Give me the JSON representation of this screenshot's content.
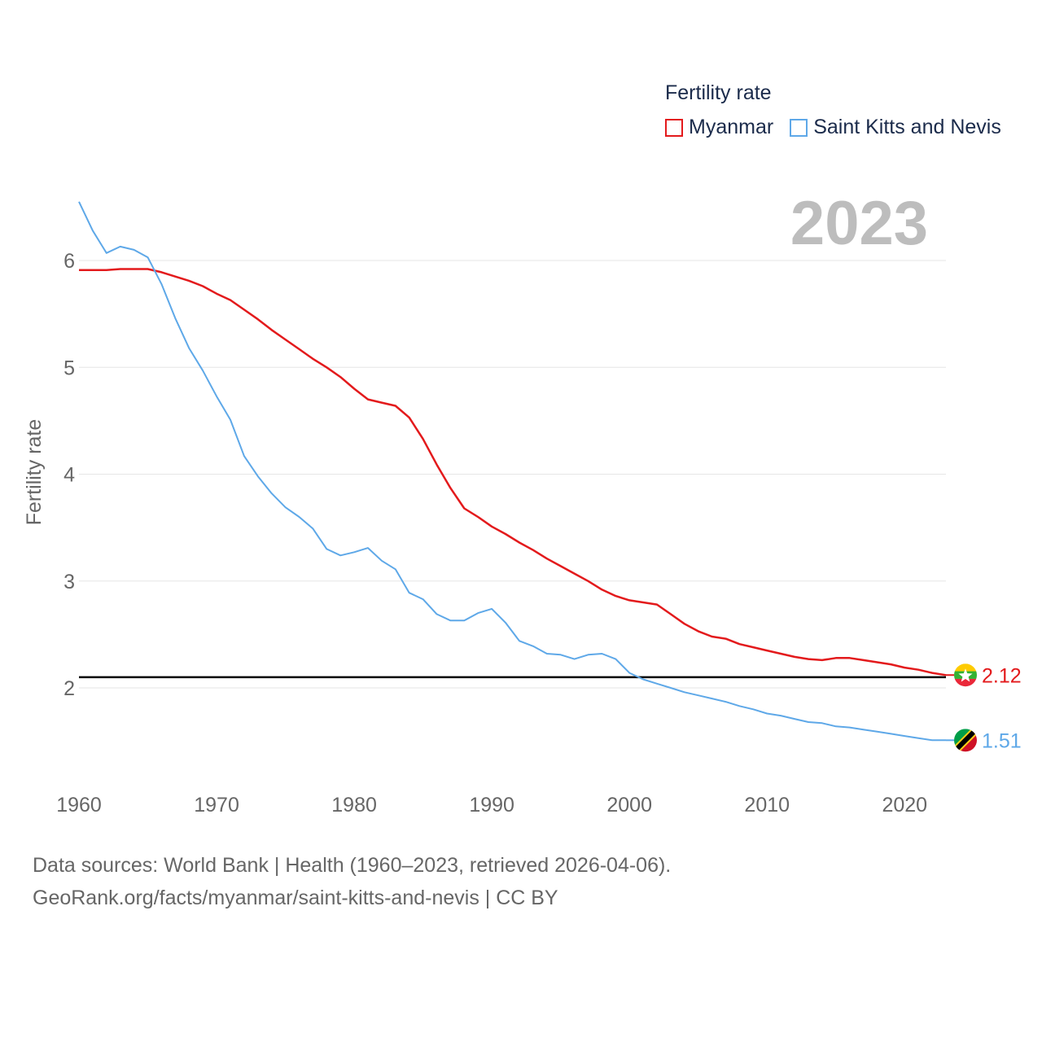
{
  "legend": {
    "title": "Fertility rate"
  },
  "footer": {
    "line1": "Data sources: World Bank | Health (1960–2023, retrieved 2026-04-06).",
    "line2": "GeoRank.org/facts/myanmar/saint-kitts-and-nevis | CC BY"
  },
  "chart_data": {
    "type": "line",
    "title": "Fertility rate",
    "year_label": "2023",
    "xlabel": "",
    "ylabel": "Fertility rate",
    "xlim": [
      1960,
      2023
    ],
    "ylim": [
      1.2,
      6.6
    ],
    "x_ticks": [
      1960,
      1970,
      1980,
      1990,
      2000,
      2010,
      2020
    ],
    "y_ticks": [
      2,
      3,
      4,
      5,
      6
    ],
    "reference_line": {
      "value": 2.1,
      "color": "#000000"
    },
    "x": [
      1960,
      1961,
      1962,
      1963,
      1964,
      1965,
      1966,
      1967,
      1968,
      1969,
      1970,
      1971,
      1972,
      1973,
      1974,
      1975,
      1976,
      1977,
      1978,
      1979,
      1980,
      1981,
      1982,
      1983,
      1984,
      1985,
      1986,
      1987,
      1988,
      1989,
      1990,
      1991,
      1992,
      1993,
      1994,
      1995,
      1996,
      1997,
      1998,
      1999,
      2000,
      2001,
      2002,
      2003,
      2004,
      2005,
      2006,
      2007,
      2008,
      2009,
      2010,
      2011,
      2012,
      2013,
      2014,
      2015,
      2016,
      2017,
      2018,
      2019,
      2020,
      2021,
      2022,
      2023
    ],
    "series": [
      {
        "name": "Myanmar",
        "color": "#e31a1c",
        "end_label": "2.12",
        "values": [
          5.91,
          5.91,
          5.91,
          5.92,
          5.92,
          5.92,
          5.89,
          5.85,
          5.81,
          5.76,
          5.69,
          5.63,
          5.54,
          5.45,
          5.35,
          5.26,
          5.17,
          5.08,
          5.0,
          4.91,
          4.8,
          4.7,
          4.67,
          4.64,
          4.53,
          4.33,
          4.09,
          3.87,
          3.68,
          3.6,
          3.51,
          3.44,
          3.36,
          3.29,
          3.21,
          3.14,
          3.07,
          3.0,
          2.92,
          2.86,
          2.82,
          2.8,
          2.78,
          2.69,
          2.6,
          2.53,
          2.48,
          2.46,
          2.41,
          2.38,
          2.35,
          2.32,
          2.29,
          2.27,
          2.26,
          2.28,
          2.28,
          2.26,
          2.24,
          2.22,
          2.19,
          2.17,
          2.14,
          2.12
        ]
      },
      {
        "name": "Saint Kitts and Nevis",
        "color": "#5ea8e8",
        "end_label": "1.51",
        "values": [
          6.55,
          6.28,
          6.07,
          6.13,
          6.1,
          6.03,
          5.78,
          5.46,
          5.18,
          4.97,
          4.73,
          4.51,
          4.17,
          3.98,
          3.82,
          3.69,
          3.6,
          3.49,
          3.3,
          3.24,
          3.27,
          3.31,
          3.19,
          3.11,
          2.89,
          2.83,
          2.69,
          2.63,
          2.63,
          2.7,
          2.74,
          2.61,
          2.44,
          2.39,
          2.32,
          2.31,
          2.27,
          2.31,
          2.32,
          2.27,
          2.14,
          2.08,
          2.04,
          2.0,
          1.96,
          1.93,
          1.9,
          1.87,
          1.83,
          1.8,
          1.76,
          1.74,
          1.71,
          1.68,
          1.67,
          1.64,
          1.63,
          1.61,
          1.59,
          1.57,
          1.55,
          1.53,
          1.51,
          1.51
        ]
      }
    ]
  }
}
